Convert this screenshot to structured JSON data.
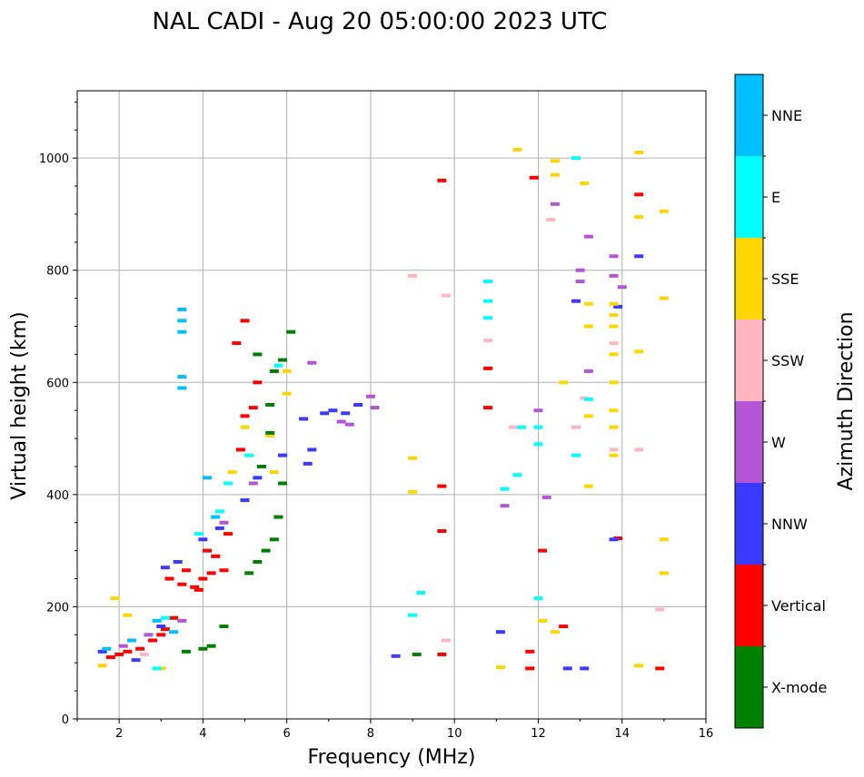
{
  "chart_data": {
    "type": "scatter",
    "title": "NAL CADI - Aug 20 05:00:00 2023 UTC",
    "xlabel": "Frequency (MHz)",
    "ylabel": "Virtual height (km)",
    "xlim": [
      1,
      16
    ],
    "ylim": [
      0,
      1120
    ],
    "xticks": [
      "2",
      "4",
      "6",
      "8",
      "10",
      "12",
      "14",
      "16"
    ],
    "yticks": [
      "0",
      "200",
      "400",
      "600",
      "800",
      "1000"
    ],
    "grid": true,
    "colorbar": {
      "label": "Azimuth Direction",
      "categories": [
        {
          "name": "X-mode",
          "color": "#008000"
        },
        {
          "name": "Vertical",
          "color": "#ff0000"
        },
        {
          "name": "NNW",
          "color": "#3a3aff"
        },
        {
          "name": "W",
          "color": "#b455d6"
        },
        {
          "name": "SSW",
          "color": "#ffb6c1"
        },
        {
          "name": "SSE",
          "color": "#ffd700"
        },
        {
          "name": "E",
          "color": "#00ffff"
        },
        {
          "name": "NNE",
          "color": "#00bfff"
        }
      ]
    },
    "series": [
      {
        "name": "Vertical",
        "points": [
          [
            1.8,
            110
          ],
          [
            2.0,
            115
          ],
          [
            2.2,
            120
          ],
          [
            2.5,
            125
          ],
          [
            2.8,
            140
          ],
          [
            3.0,
            150
          ],
          [
            3.1,
            160
          ],
          [
            3.3,
            180
          ],
          [
            3.2,
            250
          ],
          [
            3.5,
            240
          ],
          [
            3.8,
            235
          ],
          [
            4.0,
            250
          ],
          [
            4.2,
            260
          ],
          [
            4.5,
            265
          ],
          [
            3.9,
            230
          ],
          [
            3.6,
            265
          ],
          [
            4.3,
            290
          ],
          [
            4.1,
            300
          ],
          [
            4.6,
            330
          ],
          [
            4.9,
            480
          ],
          [
            5.0,
            540
          ],
          [
            5.2,
            555
          ],
          [
            4.8,
            670
          ],
          [
            5.0,
            710
          ],
          [
            5.3,
            600
          ],
          [
            9.7,
            960
          ],
          [
            9.7,
            415
          ],
          [
            9.7,
            335
          ],
          [
            10.8,
            625
          ],
          [
            10.8,
            555
          ],
          [
            11.9,
            965
          ],
          [
            12.1,
            300
          ],
          [
            11.8,
            120
          ],
          [
            11.8,
            90
          ],
          [
            12.6,
            165
          ],
          [
            13.9,
            322
          ],
          [
            14.4,
            935
          ],
          [
            14.9,
            90
          ],
          [
            9.7,
            115
          ]
        ]
      },
      {
        "name": "NNW",
        "points": [
          [
            1.6,
            120
          ],
          [
            2.4,
            105
          ],
          [
            3.0,
            165
          ],
          [
            3.1,
            270
          ],
          [
            3.4,
            280
          ],
          [
            4.0,
            320
          ],
          [
            4.4,
            340
          ],
          [
            5.0,
            390
          ],
          [
            5.3,
            430
          ],
          [
            5.9,
            470
          ],
          [
            6.6,
            480
          ],
          [
            6.5,
            455
          ],
          [
            6.4,
            535
          ],
          [
            6.9,
            545
          ],
          [
            7.1,
            550
          ],
          [
            7.4,
            545
          ],
          [
            7.7,
            560
          ],
          [
            8.6,
            112
          ],
          [
            11.1,
            155
          ],
          [
            12.9,
            745
          ],
          [
            12.7,
            90
          ],
          [
            13.1,
            90
          ],
          [
            13.8,
            320
          ],
          [
            13.9,
            735
          ],
          [
            14.4,
            825
          ]
        ]
      },
      {
        "name": "W",
        "points": [
          [
            2.1,
            130
          ],
          [
            2.7,
            150
          ],
          [
            3.5,
            175
          ],
          [
            4.5,
            350
          ],
          [
            5.2,
            420
          ],
          [
            6.6,
            635
          ],
          [
            7.3,
            530
          ],
          [
            7.5,
            525
          ],
          [
            8.0,
            575
          ],
          [
            8.1,
            555
          ],
          [
            11.2,
            380
          ],
          [
            12.2,
            395
          ],
          [
            13.0,
            780
          ],
          [
            13.0,
            800
          ],
          [
            13.2,
            860
          ],
          [
            13.2,
            620
          ],
          [
            13.8,
            825
          ],
          [
            13.8,
            790
          ],
          [
            14.0,
            770
          ],
          [
            12.4,
            918
          ],
          [
            12.0,
            550
          ]
        ]
      },
      {
        "name": "SSW",
        "points": [
          [
            2.6,
            115
          ],
          [
            9.0,
            790
          ],
          [
            9.8,
            755
          ],
          [
            10.8,
            675
          ],
          [
            11.4,
            520
          ],
          [
            12.3,
            890
          ],
          [
            12.9,
            520
          ],
          [
            13.1,
            572
          ],
          [
            13.8,
            670
          ],
          [
            13.8,
            480
          ],
          [
            14.4,
            480
          ],
          [
            14.9,
            195
          ],
          [
            9.8,
            140
          ]
        ]
      },
      {
        "name": "SSE",
        "points": [
          [
            1.6,
            95
          ],
          [
            1.9,
            215
          ],
          [
            2.2,
            185
          ],
          [
            3.0,
            90
          ],
          [
            4.7,
            440
          ],
          [
            5.0,
            520
          ],
          [
            5.6,
            505
          ],
          [
            5.7,
            440
          ],
          [
            6.0,
            580
          ],
          [
            6.0,
            620
          ],
          [
            9.0,
            465
          ],
          [
            9.0,
            405
          ],
          [
            11.1,
            92
          ],
          [
            11.5,
            1015
          ],
          [
            12.4,
            995
          ],
          [
            12.4,
            970
          ],
          [
            12.1,
            175
          ],
          [
            12.6,
            600
          ],
          [
            12.4,
            155
          ],
          [
            13.1,
            955
          ],
          [
            13.2,
            740
          ],
          [
            13.2,
            700
          ],
          [
            13.2,
            540
          ],
          [
            13.2,
            415
          ],
          [
            13.8,
            740
          ],
          [
            13.8,
            720
          ],
          [
            13.8,
            700
          ],
          [
            13.8,
            650
          ],
          [
            13.8,
            600
          ],
          [
            13.8,
            550
          ],
          [
            13.8,
            520
          ],
          [
            13.8,
            470
          ],
          [
            14.4,
            1010
          ],
          [
            14.4,
            895
          ],
          [
            14.4,
            655
          ],
          [
            14.4,
            95
          ],
          [
            15.0,
            905
          ],
          [
            15.0,
            750
          ],
          [
            15.0,
            320
          ],
          [
            15.0,
            260
          ]
        ]
      },
      {
        "name": "E",
        "points": [
          [
            2.9,
            90
          ],
          [
            3.1,
            180
          ],
          [
            3.9,
            330
          ],
          [
            4.4,
            370
          ],
          [
            4.6,
            420
          ],
          [
            5.1,
            470
          ],
          [
            5.8,
            630
          ],
          [
            9.0,
            185
          ],
          [
            9.2,
            225
          ],
          [
            10.8,
            780
          ],
          [
            10.8,
            745
          ],
          [
            10.8,
            715
          ],
          [
            11.2,
            410
          ],
          [
            11.5,
            435
          ],
          [
            11.6,
            520
          ],
          [
            12.0,
            490
          ],
          [
            12.0,
            215
          ],
          [
            12.9,
            470
          ],
          [
            12.9,
            1000
          ],
          [
            12.0,
            520
          ],
          [
            13.2,
            570
          ]
        ]
      },
      {
        "name": "NNE",
        "points": [
          [
            1.7,
            125
          ],
          [
            2.3,
            140
          ],
          [
            2.9,
            175
          ],
          [
            3.3,
            155
          ],
          [
            3.5,
            730
          ],
          [
            3.5,
            710
          ],
          [
            3.5,
            690
          ],
          [
            3.5,
            610
          ],
          [
            3.5,
            590
          ],
          [
            4.1,
            430
          ],
          [
            4.3,
            360
          ]
        ]
      },
      {
        "name": "X-mode",
        "points": [
          [
            3.6,
            120
          ],
          [
            4.0,
            125
          ],
          [
            4.2,
            130
          ],
          [
            4.5,
            165
          ],
          [
            5.1,
            260
          ],
          [
            5.3,
            280
          ],
          [
            5.5,
            300
          ],
          [
            5.7,
            320
          ],
          [
            5.8,
            360
          ],
          [
            5.9,
            420
          ],
          [
            5.4,
            450
          ],
          [
            5.6,
            510
          ],
          [
            5.6,
            560
          ],
          [
            5.7,
            620
          ],
          [
            5.9,
            640
          ],
          [
            6.1,
            690
          ],
          [
            9.1,
            115
          ],
          [
            5.3,
            650
          ]
        ]
      }
    ]
  }
}
